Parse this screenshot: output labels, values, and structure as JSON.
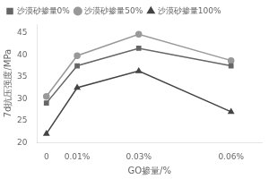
{
  "chart_data": {
    "type": "line",
    "xlabel": "GO掺量/%",
    "ylabel": "7d抗压强度/MPa",
    "x": [
      0,
      0.01,
      0.03,
      0.06
    ],
    "series": [
      {
        "name": "沙漠砂掺量0%",
        "color": "#666666",
        "marker": "square",
        "values": [
          29,
          37.5,
          41.5,
          37.5
        ]
      },
      {
        "name": "沙漠砂掺量50%",
        "color": "#999999",
        "marker": "circle",
        "values": [
          30.5,
          39.8,
          44.7,
          38.7
        ]
      },
      {
        "name": "沙漠砂掺量100%",
        "color": "#444444",
        "marker": "triangle",
        "values": [
          22,
          32.5,
          36.3,
          27
        ]
      }
    ],
    "xlim": [
      -0.003,
      0.07
    ],
    "xticks": [
      0,
      {
        "value": 0.01,
        "label": "0.01%"
      },
      {
        "value": 0.03,
        "label": "0.03%"
      },
      {
        "value": 0.06,
        "label": "0.06%"
      }
    ],
    "ylim": [
      20,
      47
    ],
    "yticks": [
      20,
      25,
      30,
      35,
      40,
      45
    ],
    "grid": false,
    "legend": "upper left"
  }
}
